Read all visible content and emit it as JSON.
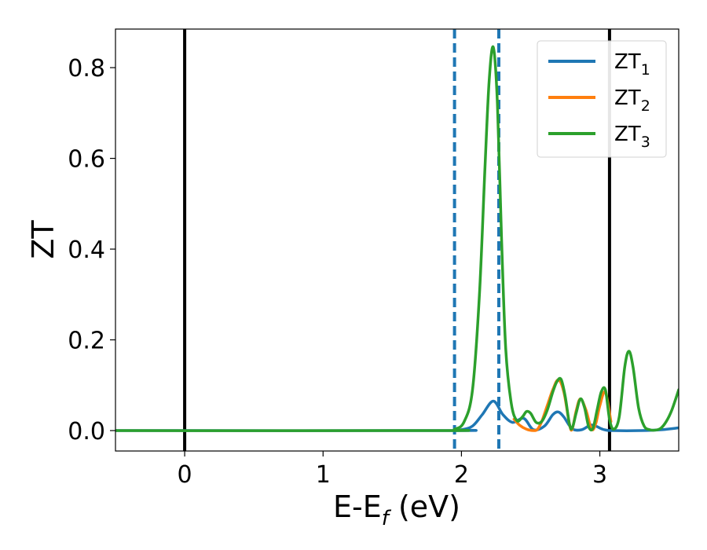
{
  "chart_data": {
    "type": "line",
    "xlabel": "E-E",
    "xlabel_sub": "f",
    "xlabel_unit": " (eV)",
    "ylabel": "ZT",
    "xlim": [
      -0.5,
      3.57
    ],
    "ylim": [
      -0.045,
      0.885
    ],
    "xticks": [
      0,
      1,
      2,
      3
    ],
    "xtick_labels": [
      "0",
      "1",
      "2",
      "3"
    ],
    "yticks": [
      0.0,
      0.2,
      0.4,
      0.6,
      0.8
    ],
    "ytick_labels": [
      "0.0",
      "0.2",
      "0.4",
      "0.6",
      "0.8"
    ],
    "grid": false,
    "legend_position": "top-right",
    "vlines": [
      {
        "x": 0.0,
        "style": "solid",
        "color": "#000000"
      },
      {
        "x": 3.07,
        "style": "solid",
        "color": "#000000"
      },
      {
        "x": 1.95,
        "style": "dashed",
        "color": "#1f77b4"
      },
      {
        "x": 2.27,
        "style": "dashed",
        "color": "#1f77b4"
      }
    ],
    "series": [
      {
        "name": "ZT",
        "name_sub": "1",
        "color": "#1f77b4",
        "x": [
          -0.5,
          1.9,
          2.0,
          2.08,
          2.15,
          2.23,
          2.3,
          2.37,
          2.45,
          2.52,
          2.6,
          2.66,
          2.7,
          2.74,
          2.8,
          2.87,
          2.93,
          2.97,
          3.03,
          3.1,
          3.3,
          3.45,
          3.57
        ],
        "y": [
          0.0,
          0.0,
          0.002,
          0.01,
          0.035,
          0.065,
          0.035,
          0.018,
          0.027,
          0.002,
          0.01,
          0.035,
          0.041,
          0.03,
          0.004,
          0.002,
          0.012,
          0.01,
          0.002,
          0.0,
          0.0,
          0.002,
          0.006
        ]
      },
      {
        "name": "ZT",
        "name_sub": "2",
        "color": "#ff7f0e",
        "x": [
          2.38,
          2.42,
          2.47,
          2.52,
          2.55,
          2.58,
          2.62,
          2.66,
          2.7,
          2.74,
          2.78,
          2.8,
          2.83,
          2.86,
          2.9,
          2.94,
          2.97,
          3.0,
          3.04,
          3.08
        ],
        "y": [
          0.025,
          0.012,
          0.003,
          0.0,
          0.003,
          0.02,
          0.055,
          0.09,
          0.112,
          0.085,
          0.015,
          0.003,
          0.045,
          0.07,
          0.045,
          0.003,
          0.015,
          0.055,
          0.085,
          0.02
        ]
      },
      {
        "name": "ZT",
        "name_sub": "3",
        "color": "#2ca02c",
        "x": [
          -0.5,
          1.85,
          1.95,
          2.02,
          2.08,
          2.13,
          2.17,
          2.2,
          2.23,
          2.26,
          2.29,
          2.32,
          2.36,
          2.4,
          2.44,
          2.47,
          2.5,
          2.54,
          2.58,
          2.62,
          2.66,
          2.69,
          2.72,
          2.75,
          2.78,
          2.8,
          2.83,
          2.86,
          2.89,
          2.92,
          2.95,
          2.98,
          3.01,
          3.04,
          3.07,
          3.1,
          3.14,
          3.18,
          3.21,
          3.24,
          3.28,
          3.32,
          3.36,
          3.4,
          3.44,
          3.48,
          3.52,
          3.57
        ],
        "y": [
          0.0,
          0.0,
          0.003,
          0.02,
          0.09,
          0.3,
          0.58,
          0.77,
          0.845,
          0.72,
          0.42,
          0.18,
          0.06,
          0.022,
          0.03,
          0.042,
          0.038,
          0.018,
          0.02,
          0.045,
          0.085,
          0.108,
          0.113,
          0.075,
          0.015,
          0.005,
          0.04,
          0.07,
          0.05,
          0.008,
          0.005,
          0.045,
          0.085,
          0.09,
          0.025,
          0.003,
          0.03,
          0.14,
          0.175,
          0.14,
          0.05,
          0.01,
          0.002,
          0.001,
          0.005,
          0.02,
          0.045,
          0.09
        ]
      }
    ]
  }
}
